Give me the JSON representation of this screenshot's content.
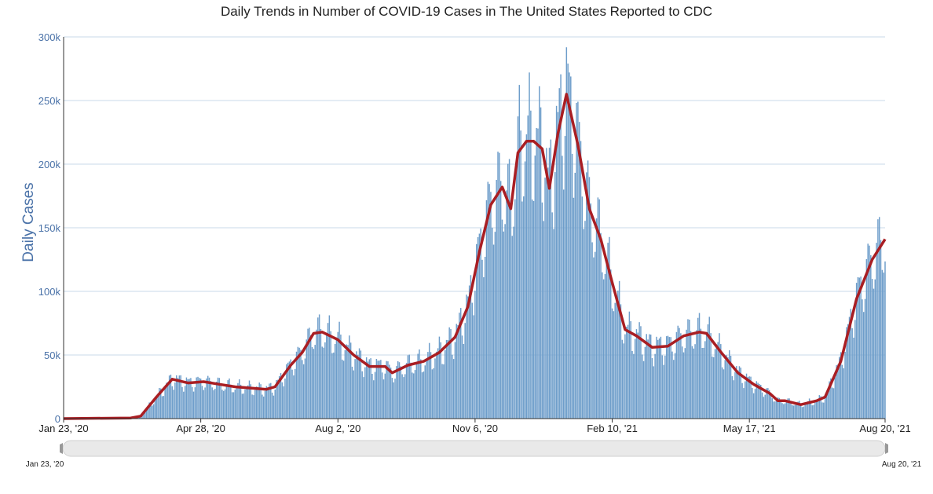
{
  "chart_data": {
    "type": "bar+line",
    "title": "Daily Trends in Number of COVID-19 Cases in The United States Reported to CDC",
    "xlabel": "",
    "ylabel": "Daily Cases",
    "xlim": [
      "2020-01-23",
      "2021-08-20"
    ],
    "ylim": [
      0,
      300000
    ],
    "grid": true,
    "y_ticks": [
      {
        "value": 0,
        "label": "0"
      },
      {
        "value": 50000,
        "label": "50k"
      },
      {
        "value": 100000,
        "label": "100k"
      },
      {
        "value": 150000,
        "label": "150k"
      },
      {
        "value": 200000,
        "label": "200k"
      },
      {
        "value": 250000,
        "label": "250k"
      },
      {
        "value": 300000,
        "label": "300k"
      }
    ],
    "x_ticks": [
      {
        "date": "2020-01-23",
        "label": "Jan 23, '20"
      },
      {
        "date": "2020-04-28",
        "label": "Apr 28, '20"
      },
      {
        "date": "2020-08-02",
        "label": "Aug 2, '20"
      },
      {
        "date": "2020-11-06",
        "label": "Nov 6, '20"
      },
      {
        "date": "2021-02-10",
        "label": "Feb 10, '21"
      },
      {
        "date": "2021-05-17",
        "label": "May 17, '21"
      },
      {
        "date": "2021-08-20",
        "label": "Aug 20, '21"
      }
    ],
    "colors": {
      "bars": "#6d9dca",
      "line": "#a91e23",
      "grid": "#c8d8e8",
      "axis_labels": "#4a72a8"
    },
    "series": [
      {
        "type": "line",
        "points": [
          [
            "2020-01-23",
            0
          ],
          [
            "2020-03-10",
            500
          ],
          [
            "2020-03-17",
            2000
          ],
          [
            "2020-03-28",
            17000
          ],
          [
            "2020-04-08",
            31000
          ],
          [
            "2020-04-19",
            28000
          ],
          [
            "2020-04-30",
            29000
          ],
          [
            "2020-05-11",
            27000
          ],
          [
            "2020-05-22",
            25000
          ],
          [
            "2020-06-02",
            24000
          ],
          [
            "2020-06-13",
            23000
          ],
          [
            "2020-06-19",
            25000
          ],
          [
            "2020-06-30",
            42000
          ],
          [
            "2020-07-08",
            52000
          ],
          [
            "2020-07-16",
            67000
          ],
          [
            "2020-07-22",
            68000
          ],
          [
            "2020-08-02",
            62000
          ],
          [
            "2020-08-13",
            50000
          ],
          [
            "2020-08-24",
            41000
          ],
          [
            "2020-09-04",
            41000
          ],
          [
            "2020-09-09",
            36000
          ],
          [
            "2020-09-20",
            42000
          ],
          [
            "2020-10-01",
            45000
          ],
          [
            "2020-10-12",
            52000
          ],
          [
            "2020-10-23",
            64000
          ],
          [
            "2020-11-01",
            88000
          ],
          [
            "2020-11-09",
            131000
          ],
          [
            "2020-11-17",
            168000
          ],
          [
            "2020-11-25",
            182000
          ],
          [
            "2020-12-01",
            165000
          ],
          [
            "2020-12-06",
            209000
          ],
          [
            "2020-12-12",
            218000
          ],
          [
            "2020-12-17",
            218000
          ],
          [
            "2020-12-23",
            212000
          ],
          [
            "2020-12-28",
            181000
          ],
          [
            "2021-01-03",
            224000
          ],
          [
            "2021-01-09",
            255000
          ],
          [
            "2021-01-17",
            215000
          ],
          [
            "2021-01-25",
            165000
          ],
          [
            "2021-02-02",
            141000
          ],
          [
            "2021-02-10",
            107000
          ],
          [
            "2021-02-19",
            70000
          ],
          [
            "2021-02-27",
            65000
          ],
          [
            "2021-03-10",
            56000
          ],
          [
            "2021-03-21",
            57000
          ],
          [
            "2021-04-01",
            65000
          ],
          [
            "2021-04-12",
            68000
          ],
          [
            "2021-04-17",
            67000
          ],
          [
            "2021-04-28",
            51000
          ],
          [
            "2021-05-09",
            36000
          ],
          [
            "2021-05-20",
            27000
          ],
          [
            "2021-05-31",
            20000
          ],
          [
            "2021-06-06",
            14000
          ],
          [
            "2021-06-11",
            14000
          ],
          [
            "2021-06-22",
            11000
          ],
          [
            "2021-07-03",
            14000
          ],
          [
            "2021-07-09",
            17000
          ],
          [
            "2021-07-20",
            45000
          ],
          [
            "2021-07-31",
            94000
          ],
          [
            "2021-08-11",
            125000
          ],
          [
            "2021-08-20",
            141000
          ]
        ]
      },
      {
        "type": "bar",
        "frequency": "daily"
      }
    ]
  },
  "navigator": {
    "start_label": "Jan 23, '20",
    "end_label": "Aug 20, '21"
  }
}
